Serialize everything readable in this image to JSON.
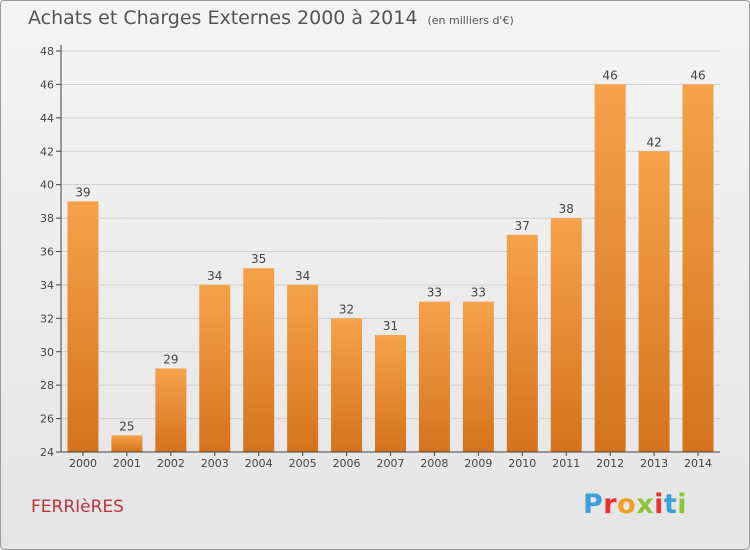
{
  "header": {
    "title": "Achats et Charges Externes 2000 à 2014",
    "subtitle": "(en milliers d'€)"
  },
  "town": "FERRIèRES",
  "logo": {
    "text": "Proxiti",
    "colors": [
      "#3aa0d8",
      "#e8322e",
      "#f0a020",
      "#8cc43c",
      "#e8322e",
      "#3aa0d8",
      "#8cc43c"
    ]
  },
  "colors": {
    "bar_light": "#f6a24a",
    "bar_dark": "#d4731c",
    "axis": "#444444",
    "grid": "#cfcfcf",
    "text": "#444444"
  },
  "chart_data": {
    "type": "bar",
    "categories": [
      "2000",
      "2001",
      "2002",
      "2003",
      "2004",
      "2005",
      "2006",
      "2007",
      "2008",
      "2009",
      "2010",
      "2011",
      "2012",
      "2013",
      "2014"
    ],
    "values": [
      39,
      25,
      29,
      34,
      35,
      34,
      32,
      31,
      33,
      33,
      37,
      38,
      46,
      42,
      46
    ],
    "title": "Achats et Charges Externes 2000 à 2014",
    "subtitle": "(en milliers d'€)",
    "xlabel": "",
    "ylabel": "",
    "ylim": [
      24,
      48
    ],
    "yticks": [
      24,
      26,
      28,
      30,
      32,
      34,
      36,
      38,
      40,
      42,
      44,
      46,
      48
    ],
    "grid": true,
    "data_labels": true
  }
}
